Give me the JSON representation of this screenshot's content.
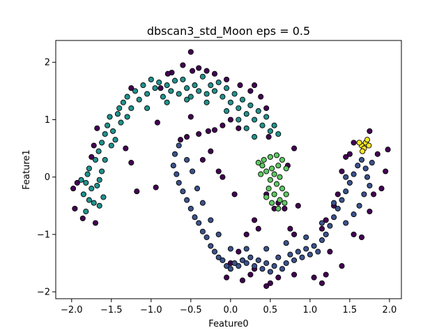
{
  "chart_data": {
    "type": "scatter",
    "title": "dbscan3_std_Moon  eps = 0.5",
    "xlabel": "Feature0",
    "ylabel": "Feature1",
    "xlim": [
      -2.2,
      2.15
    ],
    "ylim": [
      -2.12,
      2.38
    ],
    "x_ticks": [
      -2.0,
      -1.5,
      -1.0,
      -0.5,
      0.0,
      0.5,
      1.0,
      1.5,
      2.0
    ],
    "x_tick_labels": [
      "−2.0",
      "−1.5",
      "−1.0",
      "−0.5",
      "0.0",
      "0.5",
      "1.0",
      "1.5",
      "2.0"
    ],
    "y_ticks": [
      -2,
      -1,
      0,
      1,
      2
    ],
    "y_tick_labels": [
      "−2",
      "−1",
      "0",
      "1",
      "2"
    ],
    "grid": false,
    "legend": "none",
    "marker_edge_color": "#000000",
    "series": [
      {
        "cluster": "noise",
        "color": "#440154",
        "points": [
          [
            -1.86,
            -0.72
          ],
          [
            -1.98,
            -0.2
          ],
          [
            -1.93,
            -0.1
          ],
          [
            -1.96,
            -0.55
          ],
          [
            -1.7,
            -0.8
          ],
          [
            -1.75,
            0.35
          ],
          [
            -1.72,
            0.55
          ],
          [
            -1.68,
            0.85
          ],
          [
            -1.18,
            -0.25
          ],
          [
            -1.25,
            0.25
          ],
          [
            -1.32,
            0.5
          ],
          [
            -0.94,
            -0.18
          ],
          [
            -0.92,
            0.95
          ],
          [
            -0.48,
            1.85
          ],
          [
            -0.6,
            1.95
          ],
          [
            -0.5,
            2.18
          ],
          [
            -0.4,
            1.9
          ],
          [
            -0.3,
            1.85
          ],
          [
            -0.2,
            1.8
          ],
          [
            -0.74,
            1.82
          ],
          [
            -0.79,
            1.8
          ],
          [
            -0.88,
            1.55
          ],
          [
            -1.25,
            1.55
          ],
          [
            -0.55,
            0.7
          ],
          [
            -0.63,
            0.65
          ],
          [
            -0.4,
            0.75
          ],
          [
            -0.28,
            0.8
          ],
          [
            -0.2,
            0.82
          ],
          [
            -0.1,
            0.9
          ],
          [
            0.0,
            1.0
          ],
          [
            0.1,
            0.85
          ],
          [
            -0.5,
            1.05
          ],
          [
            -0.35,
            0.3
          ],
          [
            -0.25,
            0.45
          ],
          [
            -0.15,
            0.1
          ],
          [
            -0.1,
            0.0
          ],
          [
            0.05,
            -0.3
          ],
          [
            0.3,
            -0.75
          ],
          [
            0.35,
            -0.9
          ],
          [
            0.2,
            -1.0
          ],
          [
            0.1,
            -1.3
          ],
          [
            0.0,
            -1.5
          ],
          [
            -0.05,
            -1.75
          ],
          [
            0.15,
            -1.8
          ],
          [
            0.25,
            -1.7
          ],
          [
            0.3,
            -1.6
          ],
          [
            0.45,
            -1.9
          ],
          [
            0.5,
            -1.85
          ],
          [
            0.6,
            -1.75
          ],
          [
            0.8,
            -1.7
          ],
          [
            1.05,
            -1.75
          ],
          [
            1.15,
            -1.85
          ],
          [
            1.2,
            -1.7
          ],
          [
            1.4,
            -1.55
          ],
          [
            1.25,
            -1.3
          ],
          [
            1.55,
            -1.0
          ],
          [
            1.65,
            -1.05
          ],
          [
            1.75,
            -0.6
          ],
          [
            1.8,
            -0.3
          ],
          [
            1.9,
            -0.2
          ],
          [
            1.95,
            0.1
          ],
          [
            1.98,
            0.48
          ],
          [
            1.85,
            0.4
          ],
          [
            1.55,
            0.6
          ],
          [
            1.5,
            0.4
          ],
          [
            1.45,
            0.35
          ],
          [
            1.4,
            0.1
          ],
          [
            1.35,
            -0.3
          ],
          [
            1.3,
            -0.5
          ],
          [
            1.2,
            -0.75
          ],
          [
            1.15,
            -0.9
          ],
          [
            0.75,
            -0.9
          ],
          [
            0.8,
            -1.0
          ],
          [
            0.55,
            -0.55
          ],
          [
            0.6,
            -0.45
          ],
          [
            0.68,
            -0.55
          ],
          [
            0.85,
            -0.5
          ],
          [
            0.45,
            -0.3
          ],
          [
            0.48,
            0.7
          ],
          [
            0.72,
            0.2
          ],
          [
            0.8,
            0.5
          ],
          [
            0.45,
            1.2
          ],
          [
            0.38,
            1.4
          ],
          [
            0.3,
            1.6
          ],
          [
            0.25,
            1.5
          ],
          [
            0.12,
            1.6
          ],
          [
            -0.05,
            1.7
          ],
          [
            1.75,
            0.8
          ]
        ]
      },
      {
        "cluster": "upper-moon",
        "color": "#21918c",
        "points": [
          [
            -1.85,
            -0.3
          ],
          [
            -1.82,
            -0.1
          ],
          [
            -1.88,
            -0.05
          ],
          [
            -1.8,
            0.05
          ],
          [
            -1.78,
            0.15
          ],
          [
            -1.75,
            -0.2
          ],
          [
            -1.72,
            -0.45
          ],
          [
            -1.65,
            -0.5
          ],
          [
            -1.6,
            -0.35
          ],
          [
            -1.68,
            -0.15
          ],
          [
            -1.7,
            0.3
          ],
          [
            -1.66,
            0.45
          ],
          [
            -1.62,
            0.6
          ],
          [
            -1.58,
            0.75
          ],
          [
            -1.55,
            0.9
          ],
          [
            -1.52,
            1.05
          ],
          [
            -1.48,
            0.8
          ],
          [
            -1.45,
            0.65
          ],
          [
            -1.42,
            1.1
          ],
          [
            -1.4,
            1.2
          ],
          [
            -1.38,
            0.95
          ],
          [
            -1.35,
            1.3
          ],
          [
            -1.3,
            1.4
          ],
          [
            -1.25,
            1.2
          ],
          [
            -1.2,
            1.5
          ],
          [
            -1.15,
            1.35
          ],
          [
            -1.1,
            1.6
          ],
          [
            -1.05,
            1.45
          ],
          [
            -1.0,
            1.7
          ],
          [
            -0.95,
            1.55
          ],
          [
            -0.9,
            1.65
          ],
          [
            -0.85,
            1.4
          ],
          [
            -0.8,
            1.6
          ],
          [
            -0.75,
            1.5
          ],
          [
            -0.7,
            1.68
          ],
          [
            -0.65,
            1.45
          ],
          [
            -0.6,
            1.7
          ],
          [
            -0.55,
            1.55
          ],
          [
            -0.5,
            1.4
          ],
          [
            -0.45,
            1.6
          ],
          [
            -0.4,
            1.5
          ],
          [
            -0.35,
            1.75
          ],
          [
            -0.3,
            1.45
          ],
          [
            -0.25,
            1.6
          ],
          [
            -0.2,
            1.5
          ],
          [
            -0.15,
            1.65
          ],
          [
            -0.1,
            1.4
          ],
          [
            -0.05,
            1.55
          ],
          [
            0.0,
            1.3
          ],
          [
            0.05,
            1.45
          ],
          [
            0.1,
            1.2
          ],
          [
            0.15,
            1.35
          ],
          [
            0.2,
            1.1
          ],
          [
            0.25,
            1.25
          ],
          [
            0.3,
            1.0
          ],
          [
            0.35,
            1.15
          ],
          [
            0.4,
            0.9
          ],
          [
            0.45,
            1.05
          ],
          [
            0.5,
            0.8
          ],
          [
            0.55,
            0.9
          ],
          [
            0.6,
            0.75
          ],
          [
            0.3,
            0.7
          ],
          [
            0.2,
            0.85
          ],
          [
            0.1,
            1.0
          ],
          [
            -0.05,
            1.15
          ],
          [
            -0.3,
            1.3
          ],
          [
            -0.55,
            1.35
          ],
          [
            -0.8,
            1.3
          ],
          [
            -1.05,
            1.2
          ],
          [
            -1.3,
            1.05
          ],
          [
            -1.5,
            0.55
          ],
          [
            -1.58,
            0.3
          ],
          [
            -1.62,
            0.1
          ],
          [
            -1.65,
            -0.05
          ],
          [
            -1.78,
            -0.4
          ],
          [
            -1.82,
            -0.6
          ]
        ]
      },
      {
        "cluster": "lower-moon",
        "color": "#3b528b",
        "points": [
          [
            -0.65,
            0.55
          ],
          [
            -0.7,
            0.4
          ],
          [
            -0.72,
            0.2
          ],
          [
            -0.68,
            0.05
          ],
          [
            -0.65,
            -0.1
          ],
          [
            -0.6,
            -0.25
          ],
          [
            -0.55,
            -0.4
          ],
          [
            -0.5,
            -0.55
          ],
          [
            -0.45,
            -0.7
          ],
          [
            -0.4,
            -0.8
          ],
          [
            -0.35,
            -0.95
          ],
          [
            -0.3,
            -1.05
          ],
          [
            -0.25,
            -1.2
          ],
          [
            -0.2,
            -1.3
          ],
          [
            -0.15,
            -1.4
          ],
          [
            -0.1,
            -1.45
          ],
          [
            -0.05,
            -1.55
          ],
          [
            0.0,
            -1.6
          ],
          [
            0.05,
            -1.5
          ],
          [
            0.1,
            -1.55
          ],
          [
            0.15,
            -1.45
          ],
          [
            0.2,
            -1.5
          ],
          [
            0.25,
            -1.4
          ],
          [
            0.3,
            -1.55
          ],
          [
            0.35,
            -1.45
          ],
          [
            0.4,
            -1.6
          ],
          [
            0.45,
            -1.5
          ],
          [
            0.5,
            -1.65
          ],
          [
            0.55,
            -1.55
          ],
          [
            0.6,
            -1.4
          ],
          [
            0.65,
            -1.6
          ],
          [
            0.7,
            -1.5
          ],
          [
            0.75,
            -1.35
          ],
          [
            0.8,
            -1.45
          ],
          [
            0.85,
            -1.3
          ],
          [
            0.9,
            -1.4
          ],
          [
            0.95,
            -1.25
          ],
          [
            1.0,
            -1.35
          ],
          [
            1.05,
            -1.2
          ],
          [
            1.1,
            -1.3
          ],
          [
            1.15,
            -1.1
          ],
          [
            1.2,
            -1.0
          ],
          [
            1.25,
            -0.85
          ],
          [
            1.3,
            -0.7
          ],
          [
            1.35,
            -0.55
          ],
          [
            1.4,
            -0.4
          ],
          [
            1.45,
            -0.25
          ],
          [
            1.5,
            -0.1
          ],
          [
            1.55,
            0.05
          ],
          [
            1.6,
            0.2
          ],
          [
            1.65,
            0.3
          ],
          [
            1.7,
            0.15
          ],
          [
            1.72,
            0.0
          ],
          [
            1.75,
            -0.15
          ],
          [
            1.78,
            0.25
          ],
          [
            1.68,
            -0.3
          ],
          [
            1.62,
            -0.5
          ],
          [
            1.55,
            -0.65
          ],
          [
            1.45,
            -0.8
          ],
          [
            -0.55,
            0.3
          ],
          [
            -0.48,
            0.1
          ],
          [
            -0.42,
            -0.2
          ],
          [
            -0.35,
            -0.45
          ],
          [
            -0.25,
            -0.75
          ],
          [
            -0.15,
            -1.0
          ],
          [
            0.0,
            -1.25
          ],
          [
            0.2,
            -1.25
          ],
          [
            0.45,
            -1.25
          ],
          [
            0.7,
            -1.15
          ],
          [
            0.95,
            -1.05
          ],
          [
            1.15,
            -0.8
          ],
          [
            1.3,
            -0.45
          ],
          [
            1.45,
            0.0
          ]
        ]
      },
      {
        "cluster": "green",
        "color": "#5ec962",
        "points": [
          [
            0.35,
            0.25
          ],
          [
            0.42,
            0.3
          ],
          [
            0.5,
            0.35
          ],
          [
            0.58,
            0.38
          ],
          [
            0.65,
            0.3
          ],
          [
            0.6,
            0.2
          ],
          [
            0.52,
            0.15
          ],
          [
            0.45,
            0.1
          ],
          [
            0.55,
            0.05
          ],
          [
            0.62,
            0.0
          ],
          [
            0.5,
            -0.05
          ],
          [
            0.58,
            -0.12
          ],
          [
            0.65,
            -0.2
          ],
          [
            0.48,
            -0.2
          ],
          [
            0.55,
            -0.3
          ],
          [
            0.62,
            -0.4
          ],
          [
            0.7,
            -0.3
          ],
          [
            0.45,
            -0.35
          ],
          [
            0.52,
            -0.45
          ],
          [
            0.6,
            -0.55
          ],
          [
            0.68,
            -0.45
          ],
          [
            0.4,
            0.2
          ],
          [
            0.7,
            0.15
          ],
          [
            0.38,
            0.05
          ]
        ]
      },
      {
        "cluster": "yellow",
        "color": "#fde725",
        "points": [
          [
            1.65,
            0.55
          ],
          [
            1.7,
            0.6
          ],
          [
            1.68,
            0.5
          ],
          [
            1.74,
            0.55
          ],
          [
            1.62,
            0.6
          ],
          [
            1.72,
            0.65
          ],
          [
            1.66,
            0.45
          ]
        ]
      }
    ]
  }
}
